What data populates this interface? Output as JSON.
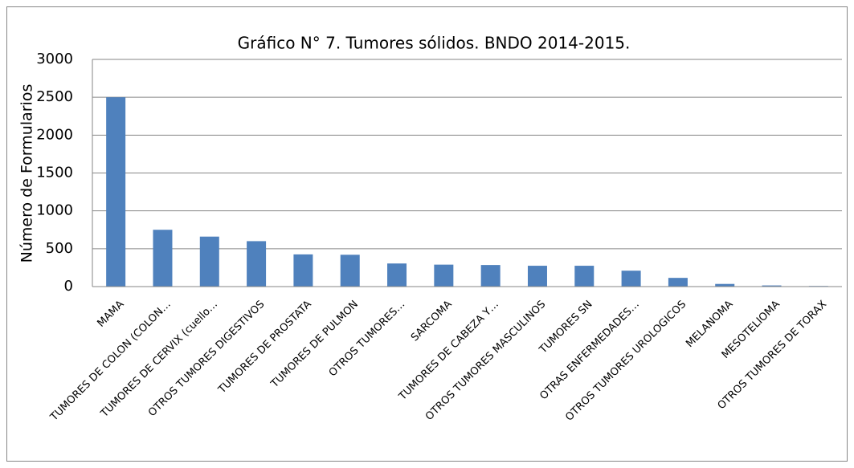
{
  "chart_data": {
    "type": "bar",
    "title": "Gráfico N° 7. Tumores sólidos. BNDO 2014-2015.",
    "ylabel": "Número de Formularios",
    "categories": [
      "MAMA",
      "TUMORES DE COLON (COLON…",
      "TUMORES DE CERVIX (cuello…",
      "OTROS TUMORES DIGESTIVOS",
      "TUMORES DE PROSTATA",
      "TUMORES DE PULMON",
      "OTROS TUMORES…",
      "SARCOMA",
      "TUMORES  DE CABEZA Y…",
      "OTROS TUMORES MASCULINOS",
      "TUMORES SN",
      "OTRAS ENFERMEDADES…",
      "OTROS TUMORES UROLOGICOS",
      "MELANOMA",
      "MESOTELIOMA",
      "OTROS TUMORES DE TORAX"
    ],
    "values": [
      2500,
      750,
      660,
      600,
      425,
      420,
      305,
      290,
      285,
      275,
      275,
      210,
      115,
      35,
      15,
      8
    ],
    "color": "#4f81bd",
    "ylim": [
      0,
      3000
    ],
    "yticks": [
      0,
      500,
      1000,
      1500,
      2000,
      2500,
      3000
    ],
    "grid": true
  }
}
